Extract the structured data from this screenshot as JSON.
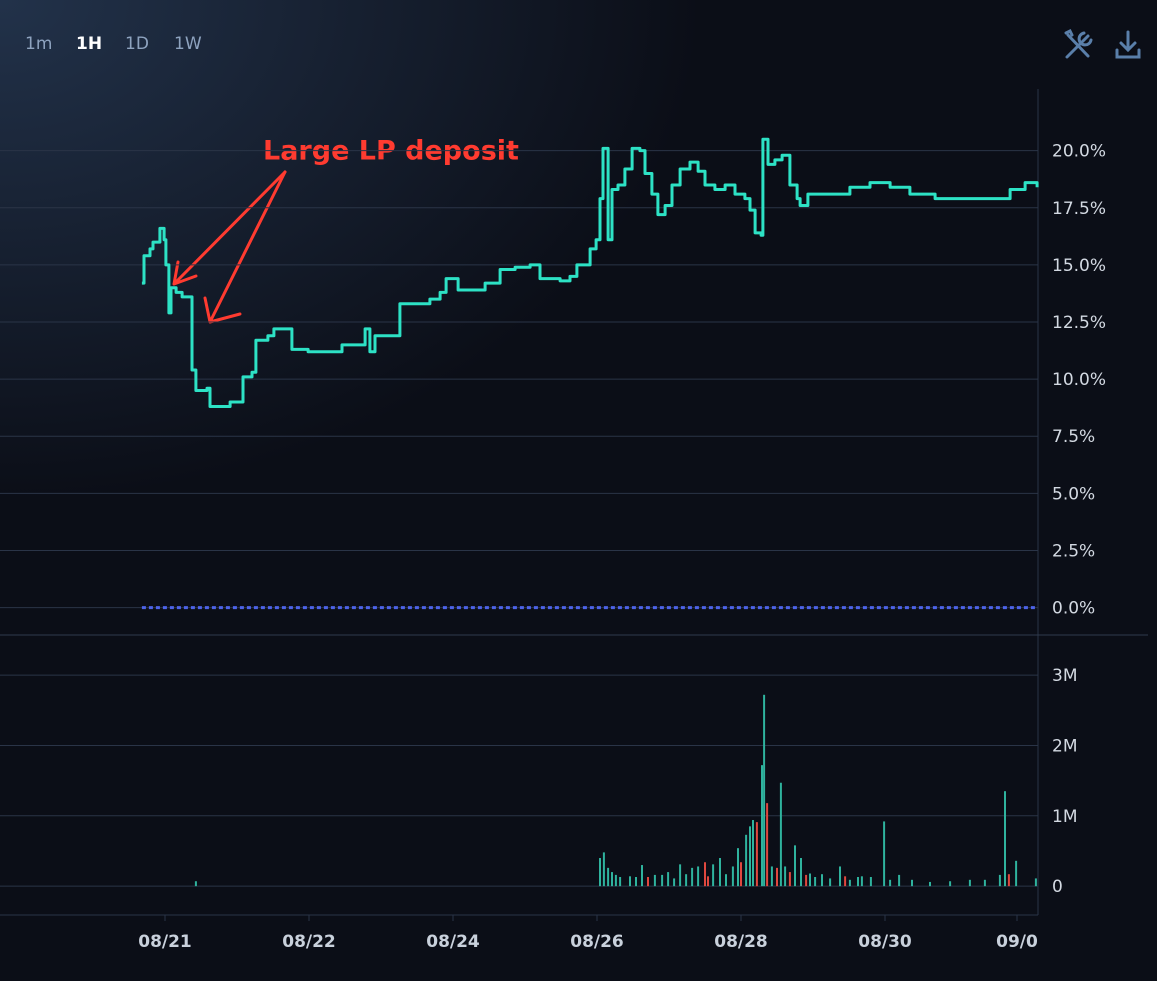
{
  "toolbar": {
    "intervals": [
      "1m",
      "1H",
      "1D",
      "1W"
    ],
    "active": 1
  },
  "chart_data": [
    {
      "type": "line",
      "step": true,
      "color": "#2de2c5",
      "annotation": "Large LP deposit",
      "x": [
        -7.7,
        -7,
        -5,
        -4,
        -1.7,
        -0.3,
        0.3,
        1.3,
        2,
        3.7,
        5.7,
        8.3,
        9,
        10.3,
        14,
        15,
        20.3,
        21.7,
        25.3,
        26,
        29,
        30.3,
        34.3,
        36.3,
        41.7,
        42.3,
        47.7,
        58.3,
        59,
        65,
        66.7,
        68.3,
        70,
        72.3,
        74.3,
        78.3,
        88.3,
        91.7,
        93.7,
        97.7,
        106.7,
        111.7,
        116.7,
        121.7,
        125,
        131.7,
        135,
        137.3,
        141.7,
        143.7,
        145,
        146,
        147.7,
        149,
        151,
        153.3,
        155.7,
        158.3,
        160,
        162.3,
        164.3,
        166.7,
        169,
        171.7,
        175,
        177.7,
        180,
        183.3,
        186.7,
        190,
        193.3,
        195,
        196.7,
        198.7,
        199.3,
        201,
        203.3,
        205.7,
        208.3,
        210.7,
        211.7,
        214.3,
        221.7,
        228.3,
        235,
        241.7,
        248.3,
        256.7,
        265,
        275,
        281.7,
        286.7,
        290.7
      ],
      "values": [
        14.2,
        15.4,
        15.7,
        16.0,
        16.6,
        16.1,
        15.0,
        12.9,
        14.0,
        13.8,
        13.6,
        13.6,
        10.4,
        9.5,
        9.6,
        8.8,
        8.8,
        9.0,
        9.0,
        10.1,
        10.3,
        11.7,
        11.9,
        12.2,
        12.2,
        11.3,
        11.2,
        11.2,
        11.5,
        11.5,
        12.2,
        11.2,
        11.9,
        11.9,
        11.9,
        13.3,
        13.5,
        13.8,
        14.4,
        13.9,
        14.2,
        14.8,
        14.9,
        15.0,
        14.4,
        14.3,
        14.5,
        15.0,
        15.7,
        16.1,
        17.9,
        20.1,
        16.1,
        18.3,
        18.5,
        19.2,
        20.1,
        20.0,
        19.0,
        18.1,
        17.2,
        17.6,
        18.5,
        19.2,
        19.5,
        19.1,
        18.5,
        18.3,
        18.5,
        18.1,
        17.9,
        17.4,
        16.4,
        16.3,
        20.5,
        19.4,
        19.6,
        19.8,
        18.5,
        17.9,
        17.6,
        18.1,
        18.1,
        18.4,
        18.6,
        18.4,
        18.1,
        17.9,
        17.9,
        17.9,
        18.3,
        18.6,
        18.4
      ],
      "xlim": [
        -55,
        291
      ],
      "ylim": [
        -1.2,
        22.7
      ],
      "yticks": [
        {
          "value": 0,
          "label": "0.0%"
        },
        {
          "value": 2.5,
          "label": "2.5%"
        },
        {
          "value": 5,
          "label": "5.0%"
        },
        {
          "value": 7.5,
          "label": "7.5%"
        },
        {
          "value": 10,
          "label": "10.0%"
        },
        {
          "value": 12.5,
          "label": "12.5%"
        },
        {
          "value": 15,
          "label": "15.0%"
        },
        {
          "value": 17.5,
          "label": "17.5%"
        },
        {
          "value": 20,
          "label": "20.0%"
        }
      ],
      "zero_line_color": "#4d63e8",
      "grid": true
    },
    {
      "type": "bar",
      "x": [
        10.3,
        145,
        146.3,
        147.7,
        149,
        150.3,
        151.7,
        155,
        157,
        159,
        161,
        163.3,
        165.7,
        167.7,
        169.7,
        171.7,
        173.7,
        175.7,
        177.7,
        180,
        181,
        182.7,
        185,
        187,
        189.3,
        191,
        192,
        193.7,
        195,
        196,
        197.3,
        199,
        199.7,
        200.7,
        202.3,
        204,
        205.3,
        206.7,
        208.3,
        210,
        212,
        213.7,
        215,
        216.7,
        219,
        221.7,
        225,
        226.7,
        228.3,
        231,
        232.3,
        235.3,
        239.7,
        241.7,
        244.7,
        249,
        255,
        261.7,
        268.3,
        273.3,
        278.3,
        280,
        281.3,
        283.7,
        290.3
      ],
      "values": [
        70000,
        400000,
        480000,
        260000,
        200000,
        160000,
        130000,
        140000,
        130000,
        300000,
        130000,
        160000,
        160000,
        200000,
        110000,
        310000,
        170000,
        260000,
        280000,
        340000,
        140000,
        310000,
        400000,
        170000,
        280000,
        540000,
        340000,
        730000,
        850000,
        940000,
        910000,
        1720000,
        2720000,
        1180000,
        280000,
        260000,
        1470000,
        280000,
        200000,
        580000,
        400000,
        160000,
        180000,
        130000,
        170000,
        110000,
        280000,
        140000,
        90000,
        130000,
        140000,
        130000,
        920000,
        90000,
        160000,
        90000,
        60000,
        70000,
        90000,
        90000,
        160000,
        1350000,
        170000,
        360000,
        110000
      ],
      "colors": [
        "#2fb39e",
        "#2fb39e",
        "#2fb39e",
        "#2fb39e",
        "#2fb39e",
        "#2fb39e",
        "#2fb39e",
        "#2fb39e",
        "#2fb39e",
        "#2fb39e",
        "#e0483f",
        "#2fb39e",
        "#2fb39e",
        "#2fb39e",
        "#2fb39e",
        "#2fb39e",
        "#2fb39e",
        "#2fb39e",
        "#2fb39e",
        "#e0483f",
        "#e0483f",
        "#2fb39e",
        "#2fb39e",
        "#2fb39e",
        "#2fb39e",
        "#2fb39e",
        "#e0483f",
        "#2fb39e",
        "#2fb39e",
        "#2fb39e",
        "#e0483f",
        "#2fb39e",
        "#2fb39e",
        "#e0483f",
        "#2fb39e",
        "#e0483f",
        "#2fb39e",
        "#2fb39e",
        "#e0483f",
        "#2fb39e",
        "#2fb39e",
        "#e0483f",
        "#2fb39e",
        "#2fb39e",
        "#2fb39e",
        "#2fb39e",
        "#2fb39e",
        "#e0483f",
        "#2fb39e",
        "#2fb39e",
        "#2fb39e",
        "#2fb39e",
        "#2fb39e",
        "#2fb39e",
        "#2fb39e",
        "#2fb39e",
        "#2fb39e",
        "#2fb39e",
        "#2fb39e",
        "#2fb39e",
        "#2fb39e",
        "#2fb39e",
        "#e0483f",
        "#2fb39e",
        "#2fb39e"
      ],
      "xlim": [
        -55,
        291
      ],
      "ylim": [
        -410000,
        3570000
      ],
      "yticks": [
        0,
        {
          "value": 1000000,
          "label": "1M"
        },
        {
          "value": 2000000,
          "label": "2M"
        },
        {
          "value": 3000000,
          "label": "3M"
        }
      ],
      "xticks": [
        {
          "value": 0,
          "label": "08/21"
        },
        {
          "value": 48,
          "label": "08/22"
        },
        {
          "value": 96,
          "label": "08/24"
        },
        {
          "value": 144,
          "label": "08/26"
        },
        {
          "value": 192,
          "label": "08/28"
        },
        {
          "value": 240,
          "label": "08/30"
        },
        {
          "value": 284,
          "label": "09/0"
        }
      ],
      "grid": true
    }
  ]
}
